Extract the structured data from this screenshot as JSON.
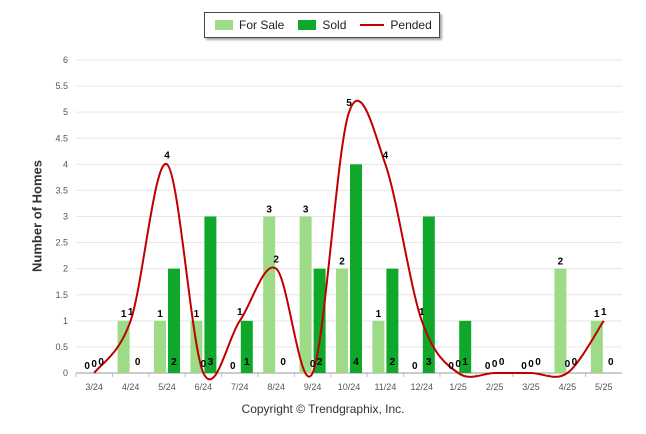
{
  "chart_data": {
    "type": "bar",
    "ylabel": "Number of Homes",
    "ylim": [
      0,
      6
    ],
    "yticks": [
      "0",
      "0.5",
      "1",
      "1.5",
      "2",
      "2.5",
      "3",
      "3.5",
      "4",
      "4.5",
      "5",
      "5.5",
      "6"
    ],
    "categories": [
      "3/24",
      "4/24",
      "5/24",
      "6/24",
      "7/24",
      "8/24",
      "9/24",
      "10/24",
      "11/24",
      "12/24",
      "1/25",
      "2/25",
      "3/25",
      "4/25",
      "5/25"
    ],
    "series": [
      {
        "name": "For Sale",
        "type": "bar",
        "color": "#9ddb86",
        "values": [
          0,
          1,
          1,
          1,
          0,
          3,
          3,
          2,
          1,
          0,
          0,
          0,
          0,
          2,
          1
        ]
      },
      {
        "name": "Sold",
        "type": "bar",
        "color": "#10a82a",
        "values": [
          0,
          0,
          2,
          3,
          1,
          0,
          2,
          4,
          2,
          3,
          1,
          0,
          0,
          0,
          0
        ]
      },
      {
        "name": "Pended",
        "type": "line",
        "color": "#c00000",
        "values": [
          0,
          1,
          4,
          0,
          1,
          2,
          0,
          5,
          4,
          1,
          0,
          0,
          0,
          0,
          1
        ]
      }
    ],
    "grid": true,
    "legend": "top-center"
  },
  "legend": {
    "for_sale": "For Sale",
    "sold": "Sold",
    "pended": "Pended"
  },
  "footer": {
    "copyright": "Copyright © Trendgraphix, Inc."
  }
}
